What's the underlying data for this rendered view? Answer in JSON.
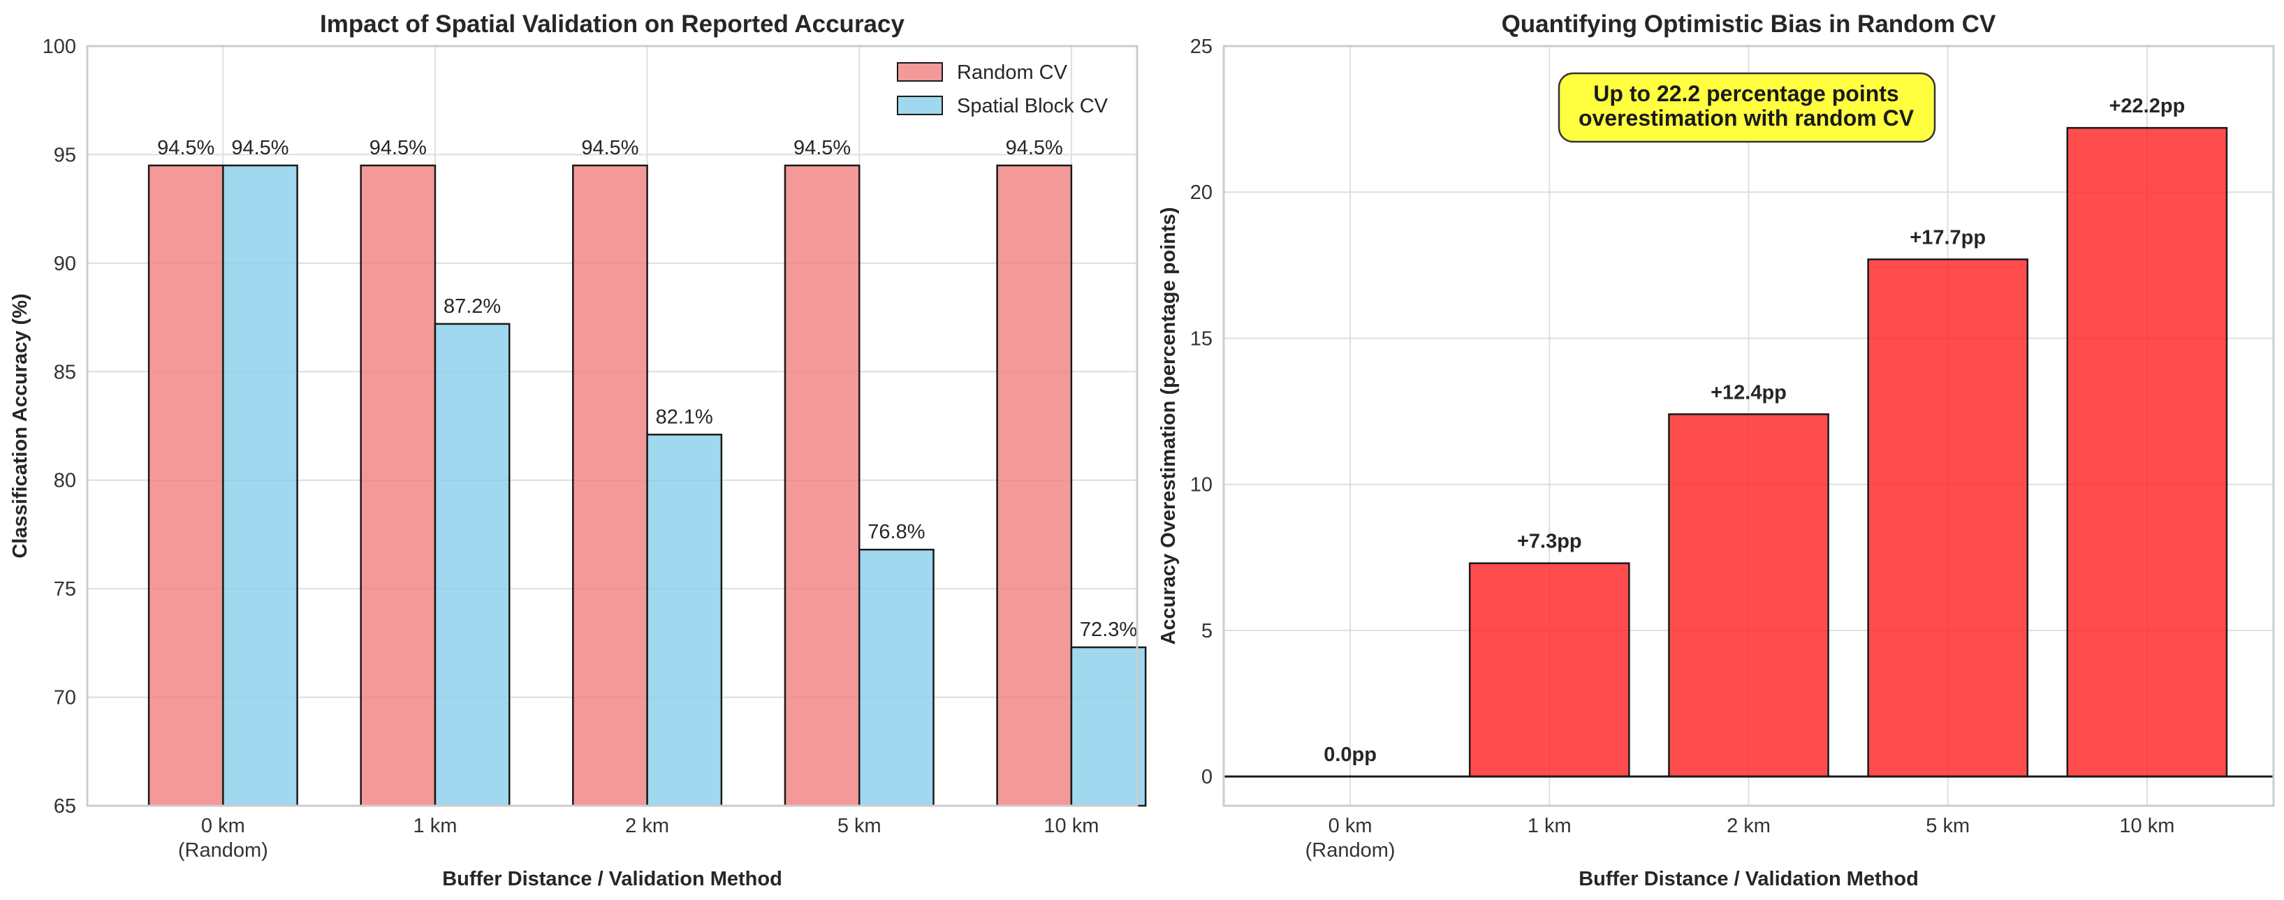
{
  "chart_data": [
    {
      "type": "bar",
      "title": "Impact of Spatial Validation on Reported Accuracy",
      "xlabel": "Buffer Distance / Validation Method",
      "ylabel": "Classification Accuracy (%)",
      "categories": [
        [
          "0 km",
          "(Random)"
        ],
        [
          "1 km"
        ],
        [
          "2 km"
        ],
        [
          "5 km"
        ],
        [
          "10 km"
        ]
      ],
      "ylim": [
        65,
        100
      ],
      "yticks": [
        65,
        70,
        75,
        80,
        85,
        90,
        95,
        100
      ],
      "grid": true,
      "legend_position": "top-right",
      "series": [
        {
          "name": "Random CV",
          "values": [
            94.5,
            94.5,
            94.5,
            94.5,
            94.5
          ],
          "labels": [
            "94.5%",
            "94.5%",
            "94.5%",
            "94.5%",
            "94.5%"
          ],
          "color": "#f08080"
        },
        {
          "name": "Spatial Block CV",
          "values": [
            94.5,
            87.2,
            82.1,
            76.8,
            72.3
          ],
          "labels": [
            "94.5%",
            "87.2%",
            "82.1%",
            "76.8%",
            "72.3%"
          ],
          "color": "#87ceeb"
        }
      ]
    },
    {
      "type": "bar",
      "title": "Quantifying Optimistic Bias in Random CV",
      "xlabel": "Buffer Distance / Validation Method",
      "ylabel": "Accuracy Overestimation (percentage points)",
      "categories": [
        [
          "0 km",
          "(Random)"
        ],
        [
          "1 km"
        ],
        [
          "2 km"
        ],
        [
          "5 km"
        ],
        [
          "10 km"
        ]
      ],
      "ylim": [
        -1,
        25
      ],
      "yticks": [
        0,
        5,
        10,
        15,
        20,
        25
      ],
      "grid": true,
      "series": [
        {
          "name": "Overestimation",
          "values": [
            0.0,
            7.3,
            12.4,
            17.7,
            22.2
          ],
          "labels": [
            "0.0pp",
            "+7.3pp",
            "+12.4pp",
            "+17.7pp",
            "+22.2pp"
          ],
          "color": "#ff2020"
        }
      ],
      "annotation": [
        "Up to 22.2 percentage points",
        "overestimation with random CV"
      ],
      "annotation_color": "#ffff40"
    }
  ]
}
